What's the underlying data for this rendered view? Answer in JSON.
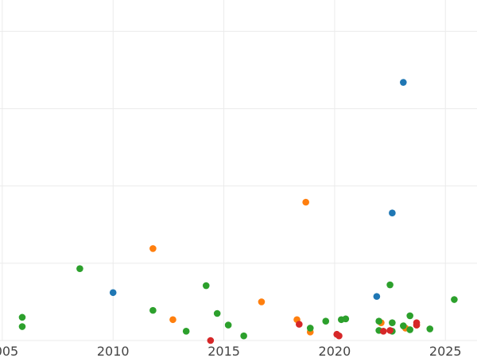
{
  "chart_data": {
    "type": "scatter",
    "title": "",
    "xlabel": "",
    "ylabel": "",
    "xlim": [
      2004.0,
      2027.0
    ],
    "ylim": [
      0,
      420
    ],
    "x_ticks": [
      2005,
      2010,
      2015,
      2020,
      2025
    ],
    "x_tick_labels": [
      "2005",
      "2010",
      "2015",
      "2020",
      "2025"
    ],
    "y_gridlines": [
      0,
      100,
      200,
      300,
      400
    ],
    "grid": true,
    "legend": "none",
    "colors": [
      "#1f77b4",
      "#ff7f0e",
      "#2ca02c",
      "#d62728"
    ],
    "series": [
      {
        "color": "#1f77b4",
        "points": [
          [
            2023.1,
            334
          ],
          [
            2022.6,
            165
          ],
          [
            2010.0,
            62
          ],
          [
            2021.9,
            57
          ]
        ]
      },
      {
        "color": "#ff7f0e",
        "points": [
          [
            2018.7,
            179
          ],
          [
            2011.8,
            119
          ],
          [
            2016.7,
            50
          ],
          [
            2012.7,
            27
          ],
          [
            2018.3,
            27
          ],
          [
            2018.9,
            11
          ],
          [
            2023.7,
            20
          ],
          [
            2022.1,
            23
          ],
          [
            2023.2,
            16
          ]
        ]
      },
      {
        "color": "#2ca02c",
        "points": [
          [
            2005.9,
            30
          ],
          [
            2005.9,
            18
          ],
          [
            2008.5,
            93
          ],
          [
            2011.8,
            39
          ],
          [
            2014.2,
            71
          ],
          [
            2013.3,
            12
          ],
          [
            2014.7,
            35
          ],
          [
            2015.2,
            20
          ],
          [
            2015.9,
            6
          ],
          [
            2018.9,
            16
          ],
          [
            2019.6,
            25
          ],
          [
            2020.3,
            27
          ],
          [
            2020.5,
            28
          ],
          [
            2022.0,
            25
          ],
          [
            2022.0,
            13
          ],
          [
            2022.5,
            72
          ],
          [
            2022.6,
            23
          ],
          [
            2022.6,
            12
          ],
          [
            2023.1,
            19
          ],
          [
            2023.4,
            32
          ],
          [
            2023.4,
            14
          ],
          [
            2024.3,
            15
          ],
          [
            2025.4,
            53
          ]
        ]
      },
      {
        "color": "#d62728",
        "points": [
          [
            2014.4,
            0
          ],
          [
            2018.4,
            21
          ],
          [
            2020.1,
            8
          ],
          [
            2020.2,
            6
          ],
          [
            2022.2,
            12
          ],
          [
            2022.5,
            13
          ],
          [
            2023.7,
            23
          ],
          [
            2023.7,
            20
          ]
        ]
      }
    ]
  }
}
